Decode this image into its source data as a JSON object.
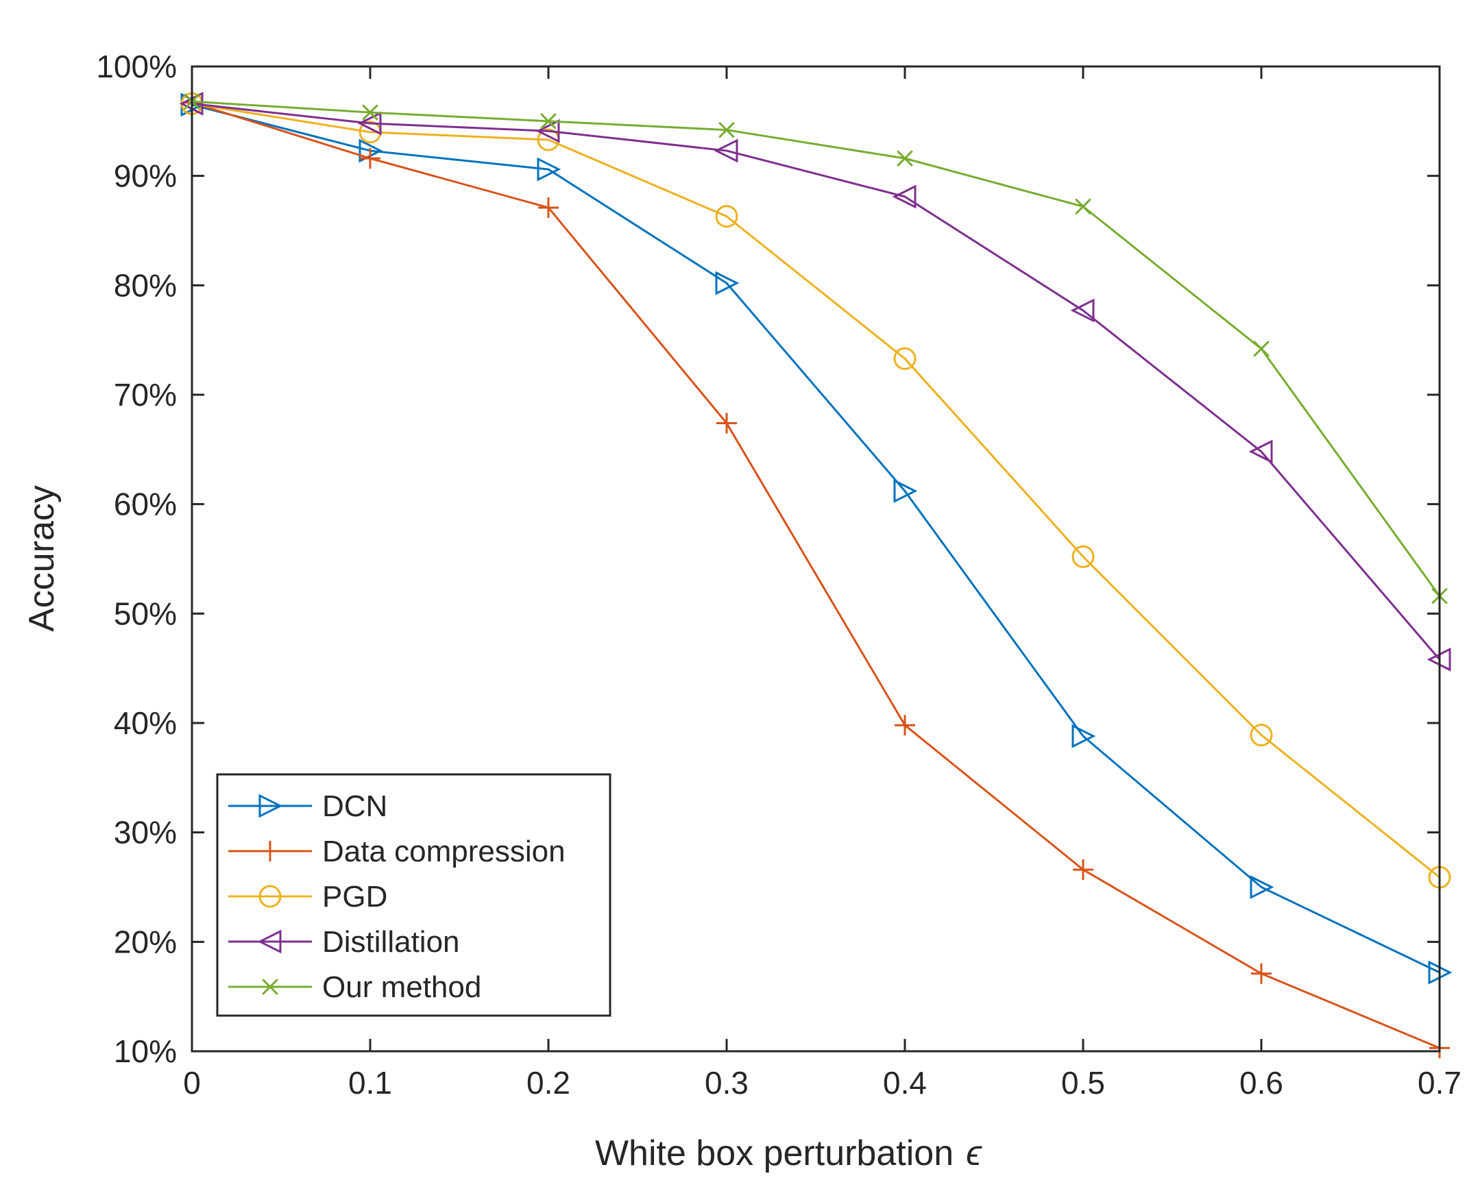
{
  "chart_data": {
    "type": "line",
    "title": "",
    "xlabel": "White box perturbation",
    "xlabel_symbol": "ϵ",
    "ylabel": "Accuracy",
    "x": [
      0,
      0.1,
      0.2,
      0.3,
      0.4,
      0.5,
      0.6,
      0.7
    ],
    "xlim": [
      0,
      0.7
    ],
    "ylim": [
      10,
      100
    ],
    "xticks": [
      "0",
      "0.1",
      "0.2",
      "0.3",
      "0.4",
      "0.5",
      "0.6",
      "0.7"
    ],
    "yticks": [
      "10%",
      "20%",
      "30%",
      "40%",
      "50%",
      "60%",
      "70%",
      "80%",
      "90%",
      "100%"
    ],
    "legend_position": "bottom-left",
    "series": [
      {
        "name": "DCN",
        "color": "#0072BD",
        "marker": "triangle-right",
        "values": [
          96.5,
          92.3,
          90.6,
          80.2,
          61.2,
          38.8,
          25.0,
          17.2
        ]
      },
      {
        "name": "Data compression",
        "color": "#D95319",
        "marker": "plus",
        "values": [
          96.7,
          91.6,
          87.1,
          67.4,
          39.8,
          26.6,
          17.1,
          10.3
        ]
      },
      {
        "name": "PGD",
        "color": "#EDB120",
        "marker": "circle",
        "values": [
          96.6,
          94.0,
          93.3,
          86.3,
          73.3,
          55.2,
          38.9,
          25.9
        ]
      },
      {
        "name": "Distillation",
        "color": "#7E2F8E",
        "marker": "triangle-left",
        "values": [
          96.6,
          94.8,
          94.1,
          92.3,
          88.1,
          77.7,
          64.8,
          45.8
        ]
      },
      {
        "name": "Our method",
        "color": "#77AC30",
        "marker": "cross",
        "values": [
          96.8,
          95.8,
          95.0,
          94.2,
          91.6,
          87.2,
          74.2,
          51.6
        ]
      }
    ]
  }
}
